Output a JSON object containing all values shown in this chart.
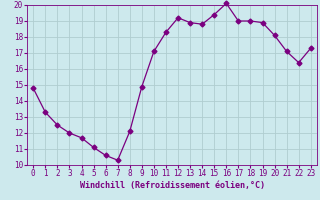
{
  "x": [
    0,
    1,
    2,
    3,
    4,
    5,
    6,
    7,
    8,
    9,
    10,
    11,
    12,
    13,
    14,
    15,
    16,
    17,
    18,
    19,
    20,
    21,
    22,
    23
  ],
  "y": [
    14.8,
    13.3,
    12.5,
    12.0,
    11.7,
    11.1,
    10.6,
    10.3,
    12.1,
    14.9,
    17.1,
    18.3,
    19.2,
    18.9,
    18.8,
    19.4,
    20.1,
    19.0,
    19.0,
    18.9,
    18.1,
    17.1,
    16.4,
    17.3
  ],
  "line_color": "#7b0080",
  "marker": "D",
  "marker_size": 2.5,
  "bg_color": "#cde9ed",
  "grid_color": "#b0cdd0",
  "xlabel": "Windchill (Refroidissement éolien,°C)",
  "xlabel_color": "#7b0080",
  "tick_color": "#7b0080",
  "ylim": [
    10,
    20
  ],
  "xlim": [
    -0.5,
    23.5
  ],
  "yticks": [
    10,
    11,
    12,
    13,
    14,
    15,
    16,
    17,
    18,
    19,
    20
  ],
  "xticks": [
    0,
    1,
    2,
    3,
    4,
    5,
    6,
    7,
    8,
    9,
    10,
    11,
    12,
    13,
    14,
    15,
    16,
    17,
    18,
    19,
    20,
    21,
    22,
    23
  ],
  "tick_fontsize": 5.5,
  "xlabel_fontsize": 6.0
}
